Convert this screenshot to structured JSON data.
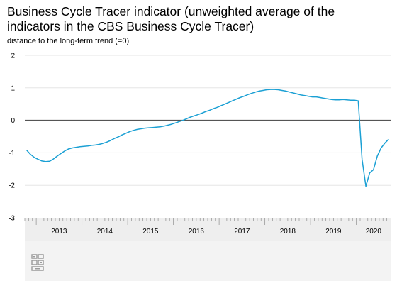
{
  "title": "Business Cycle Tracer indicator (unweighted average of the indicators in the CBS Business Cycle Tracer)",
  "subtitle": "distance to the long-term trend (=0)",
  "colors": {
    "line": "#1ba0d4",
    "zero_line": "#555555",
    "grid": "#e6e6e6",
    "axis_band": "#eeeeee"
  },
  "logo": "cbs-logo-icon",
  "chart_data": {
    "type": "line",
    "title": "Business Cycle Tracer indicator (unweighted average of the indicators in the CBS Business Cycle Tracer)",
    "ylabel": "distance to the long-term trend (=0)",
    "xlabel": "",
    "ylim": [
      -3,
      2
    ],
    "xlim": [
      "2012-10",
      "2020-09"
    ],
    "y_ticks": [
      "2",
      "1",
      "0",
      "-1",
      "-2",
      "-3"
    ],
    "x_tick_labels": [
      "2013",
      "2014",
      "2015",
      "2016",
      "2017",
      "2018",
      "2019",
      "2020"
    ],
    "grid": true,
    "legend": "none",
    "series": [
      {
        "x": [
          "2012-10",
          "2012-11",
          "2012-12",
          "2013-01",
          "2013-02",
          "2013-03",
          "2013-04",
          "2013-05",
          "2013-06",
          "2013-07",
          "2013-08",
          "2013-09",
          "2013-10",
          "2013-11",
          "2013-12",
          "2014-01",
          "2014-02",
          "2014-03",
          "2014-04",
          "2014-05",
          "2014-06",
          "2014-07",
          "2014-08",
          "2014-09",
          "2014-10",
          "2014-11",
          "2014-12",
          "2015-01",
          "2015-02",
          "2015-03",
          "2015-04",
          "2015-05",
          "2015-06",
          "2015-07",
          "2015-08",
          "2015-09",
          "2015-10",
          "2015-11",
          "2015-12",
          "2016-01",
          "2016-02",
          "2016-03",
          "2016-04",
          "2016-05",
          "2016-06",
          "2016-07",
          "2016-08",
          "2016-09",
          "2016-10",
          "2016-11",
          "2016-12",
          "2017-01",
          "2017-02",
          "2017-03",
          "2017-04",
          "2017-05",
          "2017-06",
          "2017-07",
          "2017-08",
          "2017-09",
          "2017-10",
          "2017-11",
          "2017-12",
          "2018-01",
          "2018-02",
          "2018-03",
          "2018-04",
          "2018-05",
          "2018-06",
          "2018-07",
          "2018-08",
          "2018-09",
          "2018-10",
          "2018-11",
          "2018-12",
          "2019-01",
          "2019-02",
          "2019-03",
          "2019-04",
          "2019-05",
          "2019-06",
          "2019-07",
          "2019-08",
          "2019-09",
          "2019-10",
          "2019-11",
          "2019-12",
          "2020-01",
          "2020-02",
          "2020-03",
          "2020-04",
          "2020-05",
          "2020-06",
          "2020-07",
          "2020-08",
          "2020-09"
        ],
        "values": [
          -0.92,
          -1.05,
          -1.14,
          -1.2,
          -1.25,
          -1.27,
          -1.26,
          -1.19,
          -1.1,
          -1.02,
          -0.94,
          -0.88,
          -0.85,
          -0.83,
          -0.81,
          -0.8,
          -0.79,
          -0.77,
          -0.76,
          -0.74,
          -0.71,
          -0.67,
          -0.62,
          -0.56,
          -0.51,
          -0.45,
          -0.4,
          -0.35,
          -0.31,
          -0.28,
          -0.26,
          -0.24,
          -0.23,
          -0.22,
          -0.21,
          -0.2,
          -0.18,
          -0.15,
          -0.12,
          -0.08,
          -0.04,
          0.0,
          0.05,
          0.1,
          0.14,
          0.18,
          0.22,
          0.27,
          0.31,
          0.36,
          0.4,
          0.45,
          0.5,
          0.55,
          0.6,
          0.65,
          0.7,
          0.74,
          0.79,
          0.83,
          0.87,
          0.9,
          0.92,
          0.94,
          0.95,
          0.95,
          0.94,
          0.92,
          0.9,
          0.87,
          0.84,
          0.81,
          0.78,
          0.76,
          0.74,
          0.72,
          0.72,
          0.7,
          0.68,
          0.66,
          0.64,
          0.63,
          0.63,
          0.64,
          0.63,
          0.62,
          0.62,
          0.6,
          -1.2,
          -2.03,
          -1.62,
          -1.52,
          -1.1,
          -0.85,
          -0.7,
          -0.58
        ]
      }
    ]
  }
}
